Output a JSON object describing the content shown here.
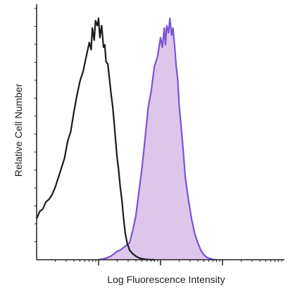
{
  "chart_data": {
    "type": "area",
    "xlabel": "Log Fluorescence Intensity",
    "ylabel": "Relative Cell Number",
    "x_scale": "log",
    "xlim": [
      0,
      4
    ],
    "ylim": [
      0,
      100
    ],
    "decades": [
      1,
      2,
      3
    ],
    "grid": false,
    "legend": "none",
    "series": [
      {
        "style": "outline",
        "color": "#1a1a1a",
        "x": [
          0.0,
          0.05,
          0.1,
          0.15,
          0.2,
          0.25,
          0.3,
          0.35,
          0.4,
          0.45,
          0.5,
          0.55,
          0.6,
          0.65,
          0.7,
          0.75,
          0.8,
          0.85,
          0.88,
          0.9,
          0.93,
          0.95,
          0.98,
          1.0,
          1.02,
          1.05,
          1.08,
          1.1,
          1.12,
          1.15,
          1.18,
          1.2,
          1.23,
          1.26,
          1.28,
          1.3,
          1.32,
          1.35,
          1.38,
          1.4,
          1.43,
          1.46,
          1.5,
          1.55,
          1.6,
          1.65,
          1.7,
          1.75,
          1.8,
          1.85,
          1.9
        ],
        "y": [
          17,
          20,
          21,
          24,
          25,
          27,
          30,
          34,
          38,
          42,
          49,
          53,
          61,
          68,
          74,
          78,
          84,
          90,
          87,
          96,
          91,
          99,
          97,
          100,
          92,
          97,
          88,
          89,
          82,
          81,
          74,
          69,
          63,
          54,
          48,
          42,
          38,
          30,
          24,
          18,
          11,
          7,
          4,
          2.5,
          1.5,
          0.8,
          0.4,
          0.2,
          0.1,
          0,
          0
        ]
      },
      {
        "style": "filled",
        "color": "#7b52d6",
        "fill": "#dcc7eb",
        "x": [
          1.0,
          1.1,
          1.2,
          1.3,
          1.35,
          1.4,
          1.45,
          1.5,
          1.55,
          1.6,
          1.65,
          1.7,
          1.75,
          1.8,
          1.85,
          1.9,
          1.95,
          2.0,
          2.03,
          2.06,
          2.08,
          2.1,
          2.13,
          2.15,
          2.18,
          2.2,
          2.23,
          2.25,
          2.28,
          2.3,
          2.33,
          2.36,
          2.4,
          2.45,
          2.5,
          2.55,
          2.6,
          2.65,
          2.7,
          2.75,
          2.8,
          2.85,
          2.9
        ],
        "y": [
          0,
          0.5,
          1.5,
          3.5,
          4,
          5,
          6,
          7,
          12,
          18,
          28,
          38,
          50,
          63,
          70,
          80,
          84,
          92,
          88,
          96,
          89,
          97,
          94,
          100,
          93,
          96,
          88,
          81,
          74,
          64,
          56,
          47,
          34,
          25,
          17,
          11,
          7,
          4,
          2,
          1,
          0.5,
          0.1,
          0
        ]
      }
    ]
  }
}
